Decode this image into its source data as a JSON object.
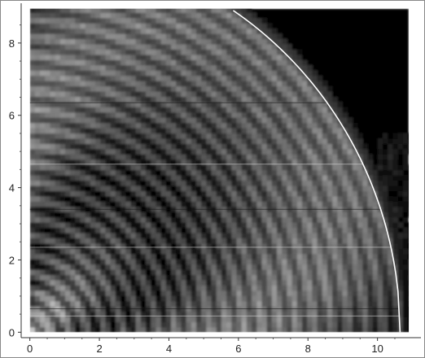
{
  "chart_data": {
    "type": "heatmap",
    "title": "",
    "xlabel": "",
    "ylabel": "",
    "xlim": [
      -0.25,
      11.25
    ],
    "ylim": [
      -0.15,
      9.1
    ],
    "data_xlim": [
      0,
      10.9
    ],
    "data_ylim": [
      0,
      8.95
    ],
    "xticks": [
      0,
      2,
      4,
      6,
      8,
      10
    ],
    "yticks": [
      0,
      2,
      4,
      6,
      8
    ],
    "colormap": "grayscale",
    "background": "#000000",
    "overlay": {
      "type": "line",
      "shape": "circular-arc",
      "color": "#ffffff",
      "center": [
        0,
        0
      ],
      "radius": 10.65,
      "x_range": [
        5.85,
        10.65
      ]
    }
  }
}
